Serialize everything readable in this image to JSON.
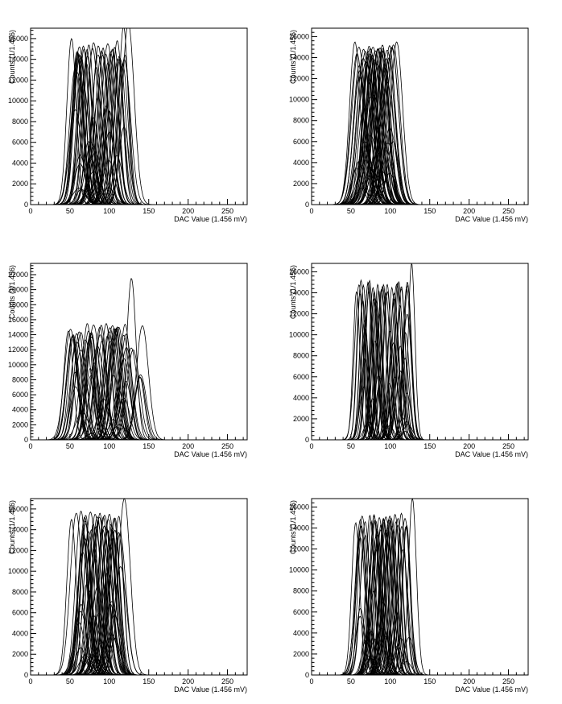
{
  "chart_data": [
    {
      "type": "line",
      "xlabel": "DAC Value (1.456 mV)",
      "ylabel": "Counts (1/1.456)",
      "xlim": [
        0,
        275
      ],
      "ylim": [
        0,
        17000
      ],
      "x_ticks": [
        0,
        50,
        100,
        150,
        200,
        250
      ],
      "y_ticks": [
        2000,
        4000,
        6000,
        8000,
        10000,
        12000,
        14000,
        16000
      ],
      "grid": false,
      "series_summary": {
        "count": 64,
        "peak_center_range": [
          50,
          125
        ],
        "sigma": 7
      },
      "peaks": [
        {
          "center": 52,
          "height": 16000
        },
        {
          "center": 62,
          "height": 15200
        },
        {
          "center": 68,
          "height": 15000
        },
        {
          "center": 74,
          "height": 15400
        },
        {
          "center": 80,
          "height": 15600
        },
        {
          "center": 86,
          "height": 15300
        },
        {
          "center": 92,
          "height": 15100
        },
        {
          "center": 98,
          "height": 15500
        },
        {
          "center": 104,
          "height": 15000
        },
        {
          "center": 110,
          "height": 15800
        },
        {
          "center": 118,
          "height": 17200
        },
        {
          "center": 124,
          "height": 17500
        }
      ]
    },
    {
      "type": "line",
      "xlabel": "DAC Value (1.456 mV)",
      "ylabel": "Counts (1/1.456)",
      "xlim": [
        0,
        275
      ],
      "ylim": [
        0,
        16800
      ],
      "x_ticks": [
        0,
        50,
        100,
        150,
        200,
        250
      ],
      "y_ticks": [
        2000,
        4000,
        6000,
        8000,
        10000,
        12000,
        14000,
        16000
      ],
      "grid": false,
      "series_summary": {
        "count": 64,
        "peak_center_range": [
          50,
          110
        ],
        "sigma": 8
      },
      "peaks": [
        {
          "center": 55,
          "height": 15500
        },
        {
          "center": 60,
          "height": 15000
        },
        {
          "center": 66,
          "height": 14800
        },
        {
          "center": 72,
          "height": 14600
        },
        {
          "center": 78,
          "height": 15000
        },
        {
          "center": 84,
          "height": 14800
        },
        {
          "center": 90,
          "height": 15200
        },
        {
          "center": 96,
          "height": 14700
        },
        {
          "center": 102,
          "height": 15000
        },
        {
          "center": 108,
          "height": 15500
        }
      ]
    },
    {
      "type": "line",
      "xlabel": "DAC Value (1.456 mV)",
      "ylabel": "Counts (1/1.456)",
      "xlim": [
        0,
        275
      ],
      "ylim": [
        0,
        23500
      ],
      "x_ticks": [
        0,
        50,
        100,
        150,
        200,
        250
      ],
      "y_ticks": [
        2000,
        4000,
        6000,
        8000,
        10000,
        12000,
        14000,
        16000,
        18000,
        20000,
        22000
      ],
      "grid": false,
      "series_summary": {
        "count": 64,
        "peak_center_range": [
          45,
          145
        ],
        "sigma": 7
      },
      "peaks": [
        {
          "center": 48,
          "height": 14500
        },
        {
          "center": 54,
          "height": 14000
        },
        {
          "center": 64,
          "height": 14300
        },
        {
          "center": 72,
          "height": 15500
        },
        {
          "center": 80,
          "height": 15300
        },
        {
          "center": 88,
          "height": 15000
        },
        {
          "center": 96,
          "height": 15500
        },
        {
          "center": 104,
          "height": 15200
        },
        {
          "center": 112,
          "height": 15000
        },
        {
          "center": 120,
          "height": 15400
        },
        {
          "center": 128,
          "height": 21500
        },
        {
          "center": 142,
          "height": 15200
        }
      ]
    },
    {
      "type": "line",
      "xlabel": "DAC Value (1.456 mV)",
      "ylabel": "Counts (1/1.456)",
      "xlim": [
        0,
        275
      ],
      "ylim": [
        0,
        16800
      ],
      "x_ticks": [
        0,
        50,
        100,
        150,
        200,
        250
      ],
      "y_ticks": [
        2000,
        4000,
        6000,
        8000,
        10000,
        12000,
        14000,
        16000
      ],
      "grid": false,
      "series_summary": {
        "count": 64,
        "peak_center_range": [
          55,
          128
        ],
        "sigma": 5
      },
      "peaks": [
        {
          "center": 57,
          "height": 14100
        },
        {
          "center": 72,
          "height": 15000
        },
        {
          "center": 78,
          "height": 14500
        },
        {
          "center": 84,
          "height": 14800
        },
        {
          "center": 90,
          "height": 14600
        },
        {
          "center": 96,
          "height": 14800
        },
        {
          "center": 102,
          "height": 14500
        },
        {
          "center": 108,
          "height": 14800
        },
        {
          "center": 114,
          "height": 14600
        },
        {
          "center": 122,
          "height": 14700
        },
        {
          "center": 127,
          "height": 16800
        }
      ]
    },
    {
      "type": "line",
      "xlabel": "DAC Value (1.456 mV)",
      "ylabel": "Counts (1/1.456)",
      "xlim": [
        0,
        275
      ],
      "ylim": [
        0,
        17000
      ],
      "x_ticks": [
        0,
        50,
        100,
        150,
        200,
        250
      ],
      "y_ticks": [
        2000,
        4000,
        6000,
        8000,
        10000,
        12000,
        14000,
        16000
      ],
      "grid": false,
      "series_summary": {
        "count": 64,
        "peak_center_range": [
          52,
          120
        ],
        "sigma": 7
      },
      "peaks": [
        {
          "center": 52,
          "height": 15000
        },
        {
          "center": 58,
          "height": 15600
        },
        {
          "center": 64,
          "height": 15800
        },
        {
          "center": 70,
          "height": 15400
        },
        {
          "center": 76,
          "height": 15700
        },
        {
          "center": 82,
          "height": 15500
        },
        {
          "center": 88,
          "height": 15600
        },
        {
          "center": 94,
          "height": 15400
        },
        {
          "center": 100,
          "height": 15500
        },
        {
          "center": 106,
          "height": 15100
        },
        {
          "center": 112,
          "height": 15300
        },
        {
          "center": 119,
          "height": 17000
        }
      ]
    },
    {
      "type": "line",
      "xlabel": "DAC Value (1.456 mV)",
      "ylabel": "Counts (1/1.456)",
      "xlim": [
        0,
        275
      ],
      "ylim": [
        0,
        16800
      ],
      "x_ticks": [
        0,
        50,
        100,
        150,
        200,
        250
      ],
      "y_ticks": [
        2000,
        4000,
        6000,
        8000,
        10000,
        12000,
        14000,
        16000
      ],
      "grid": false,
      "series_summary": {
        "count": 64,
        "peak_center_range": [
          55,
          130
        ],
        "sigma": 6
      },
      "peaks": [
        {
          "center": 56,
          "height": 14500
        },
        {
          "center": 62,
          "height": 14800
        },
        {
          "center": 68,
          "height": 14600
        },
        {
          "center": 74,
          "height": 15200
        },
        {
          "center": 80,
          "height": 14700
        },
        {
          "center": 86,
          "height": 15000
        },
        {
          "center": 92,
          "height": 14600
        },
        {
          "center": 98,
          "height": 14800
        },
        {
          "center": 106,
          "height": 15300
        },
        {
          "center": 114,
          "height": 15400
        },
        {
          "center": 128,
          "height": 16800
        }
      ]
    }
  ]
}
